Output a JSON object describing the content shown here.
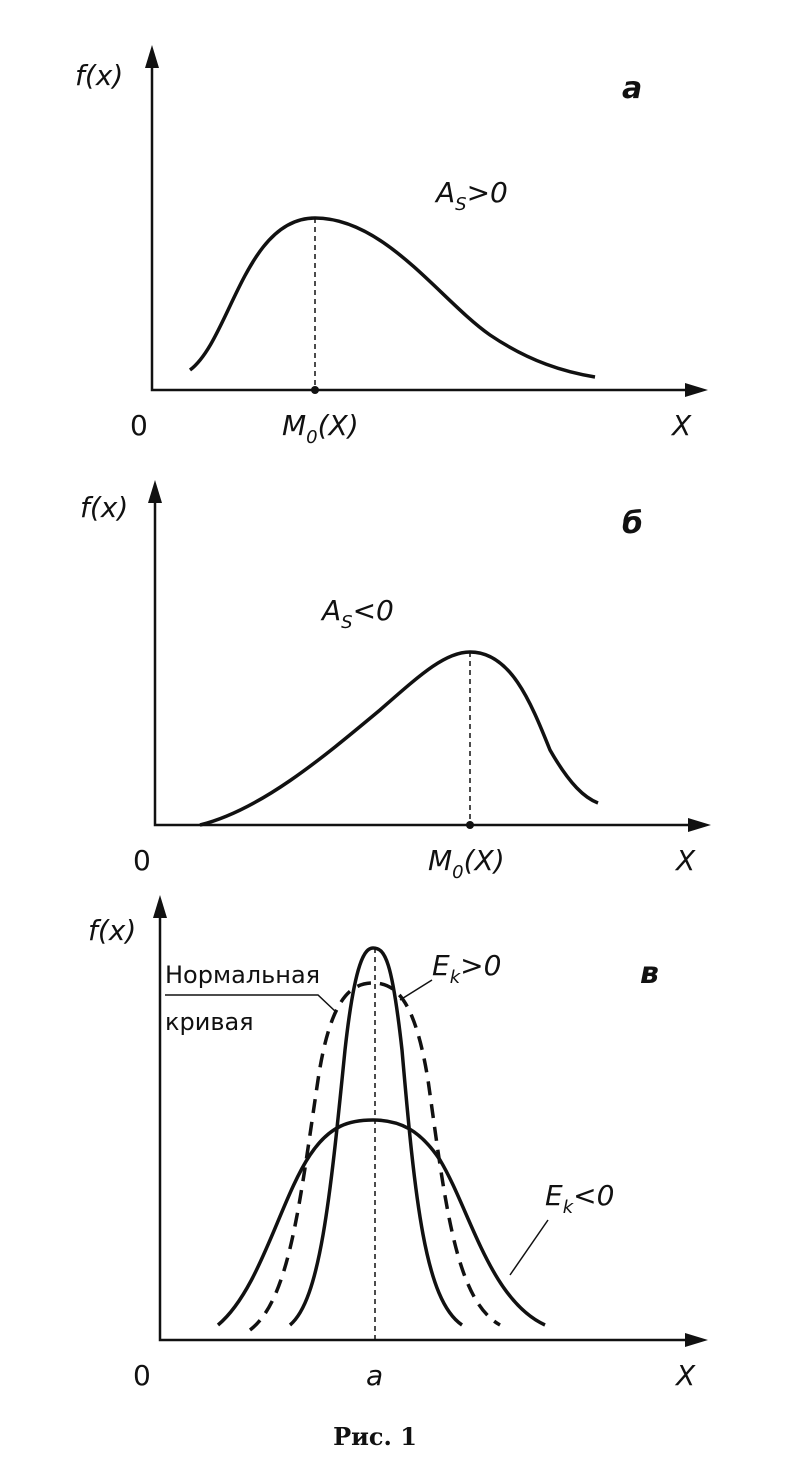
{
  "panels": [
    {
      "y_label": "f(x)",
      "letter": "а",
      "annotation": {
        "main": "A",
        "sub": "S",
        "tail": ">0"
      },
      "origin": "0",
      "mode_label": {
        "main": "M",
        "sub": "0",
        "tail": "(X)"
      },
      "x_label": "X"
    },
    {
      "y_label": "f(x)",
      "letter": "б",
      "annotation": {
        "main": "A",
        "sub": "S",
        "tail": "<0"
      },
      "origin": "0",
      "mode_label": {
        "main": "M",
        "sub": "0",
        "tail": "(X)"
      },
      "x_label": "X"
    },
    {
      "y_label": "f(x)",
      "letter": "в",
      "normal_label": [
        "Нормальная",
        "кривая"
      ],
      "positive": {
        "main": "E",
        "sub": "k",
        "tail": ">0"
      },
      "negative": {
        "main": "E",
        "sub": "k",
        "tail": "<0"
      },
      "origin": "0",
      "center_label": "a",
      "x_label": "X"
    }
  ],
  "caption": "Рис. 1"
}
